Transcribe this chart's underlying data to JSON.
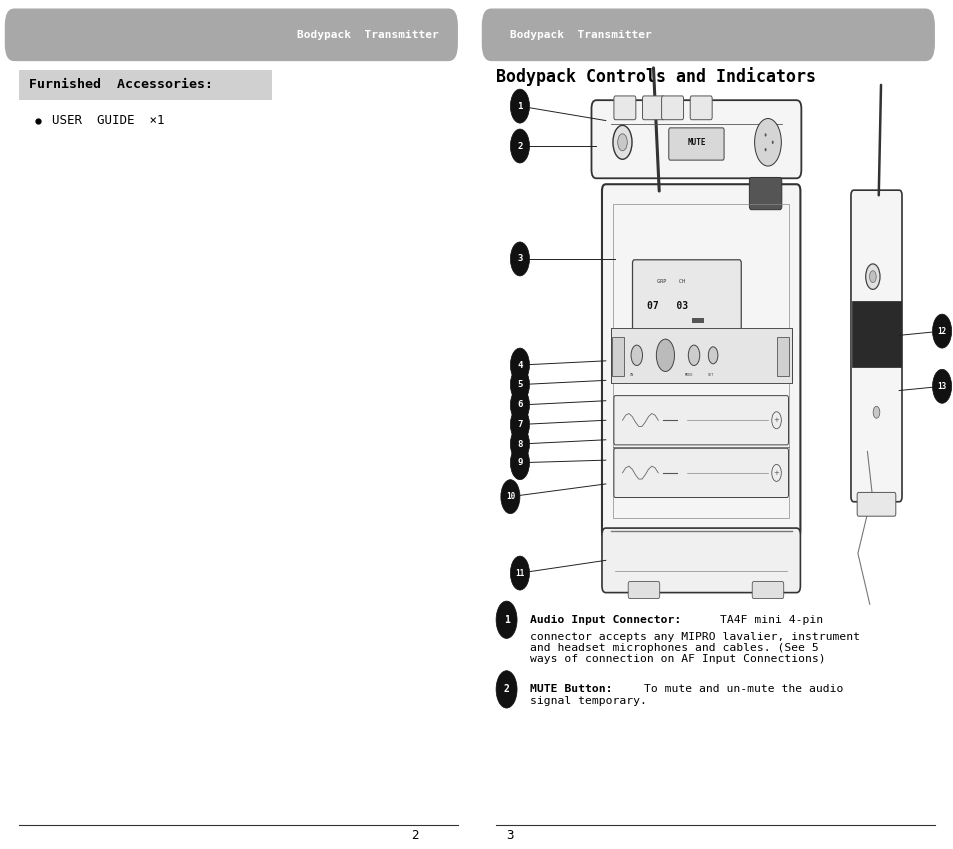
{
  "bg_color": "#ffffff",
  "header_bg": "#a8a8a8",
  "header_text_color": "#ffffff",
  "header_left_text": "Bodypack  Transmitter",
  "header_right_text": "Bodypack  Transmitter",
  "left_section_title": "Furnished  Accessories:",
  "left_section_title_bg": "#d0d0d0",
  "bullet_text": "USER  GUIDE  ×1",
  "right_section_title": "Bodypack Controls and Indicators",
  "desc1_bold": "Audio Input Connector:",
  "desc1_rest": " TA4F mini 4-pin\nconnector accepts any MIPRO lavalier, instrument\nand headset microphones and cables. (See 5\nways of connection on AF Input Connections)",
  "desc2_bold": "MUTE Button:",
  "desc2_rest": " To mute and un-mute the audio\nsignal temporary.",
  "page_num_left": "2",
  "page_num_right": "3",
  "divider_color": "#333333",
  "mono_font": "DejaVu Sans Mono"
}
